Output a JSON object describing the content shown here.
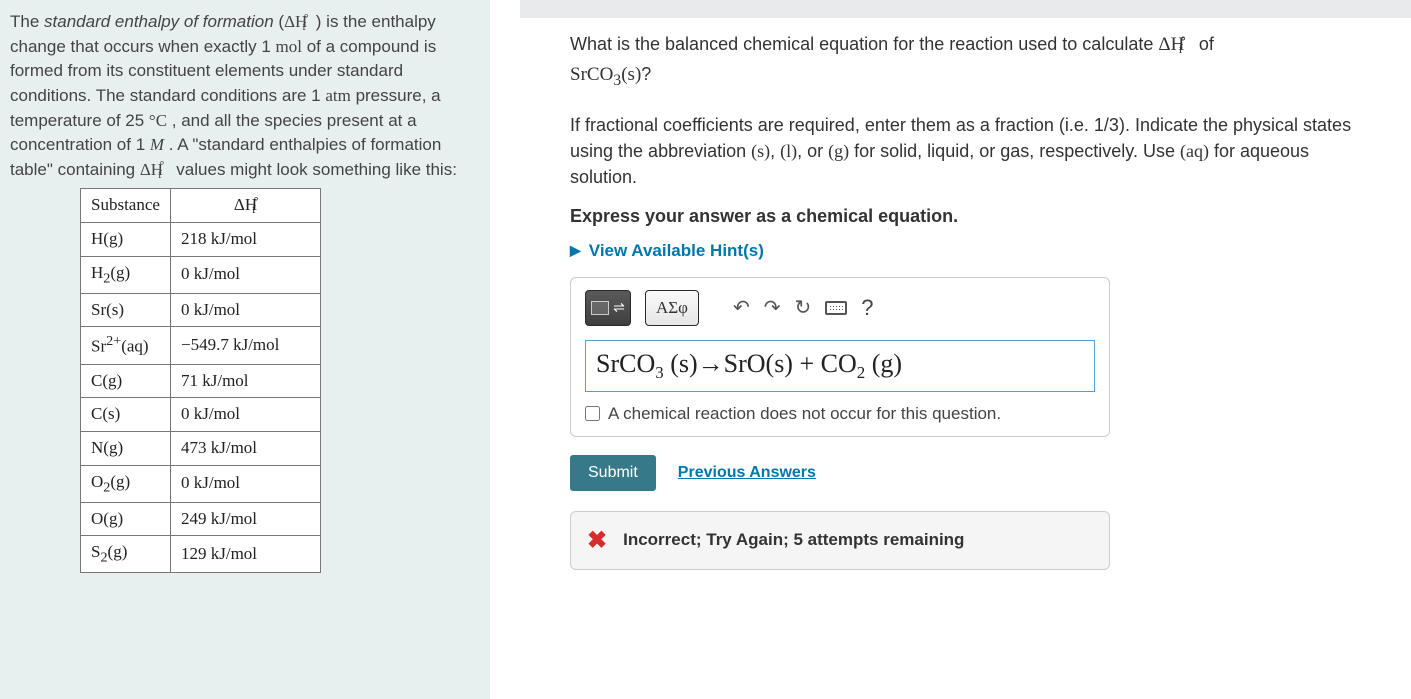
{
  "left": {
    "intro_html": "The <i>standard enthalpy of formation</i> (<span class='rm'>Δ<span class='ss'>H<sup>∘</sup><sub>f</sub></span>&nbsp;&nbsp;</span>) is the enthalpy change that occurs when exactly 1 <span class='rm'>mol</span> of a compound is formed from its constituent elements under standard conditions. The standard conditions are 1 <span class='rm'>atm</span> pressure, a temperature of 25 <span class='rm'>°C</span> , and all the species present at a concentration of 1 <span class='rm'><i>M</i></span> . A \"standard enthalpies of formation table\" containing <span class='rm'>Δ<span class='ss'>H<sup>∘</sup><sub>f</sub></span>&nbsp;&nbsp;</span> values might look something like this:",
    "table": {
      "header": [
        "Substance",
        "Δ<span class='ss'>H<sup>∘</sup><sub>f</sub></span>"
      ],
      "rows": [
        [
          "H(g)",
          "218 kJ/mol"
        ],
        [
          "H<sub>2</sub>(g)",
          "0 kJ/mol"
        ],
        [
          "Sr(s)",
          "0 kJ/mol"
        ],
        [
          "Sr<sup>2+</sup>(aq)",
          "−549.7 kJ/mol"
        ],
        [
          "C(g)",
          "71 kJ/mol"
        ],
        [
          "C(s)",
          "0 kJ/mol"
        ],
        [
          "N(g)",
          "473 kJ/mol"
        ],
        [
          "O<sub>2</sub>(g)",
          "0 kJ/mol"
        ],
        [
          "O(g)",
          "249 kJ/mol"
        ],
        [
          "S<sub>2</sub>(g)",
          "129 kJ/mol"
        ]
      ]
    }
  },
  "right": {
    "question_html": "What is the balanced chemical equation for the reaction used to calculate <span class='rm'>Δ<span class='ss'>H<sup>∘</sup><sub>f</sub></span>&nbsp;&nbsp;</span> of <br><span class='rm'>SrCO<sub>3</sub>(s)</span>?",
    "instructions_html": "If fractional coefficients are required, enter them as a fraction (i.e. 1/3). Indicate the physical states using the abbreviation <span class='rm'>(s)</span>, <span class='rm'>(l)</span>, or <span class='rm'>(g)</span> for solid, liquid, or gas, respectively. Use <span class='rm'>(aq)</span> for aqueous solution.",
    "bold_instructions": "Express your answer as a chemical equation.",
    "hints_label": "View Available Hint(s)",
    "toolbar": {
      "greek_label": "ΑΣφ",
      "undo": "↶",
      "redo": "↷",
      "reset": "↻",
      "help": "?"
    },
    "answer_value_html": "SrCO<sub>3</sub> (s)→SrO(s) + CO<sub>2</sub> (g)",
    "no_reaction_label": "A chemical reaction does not occur for this question.",
    "submit_label": "Submit",
    "previous_label": "Previous Answers",
    "feedback_text": "Incorrect; Try Again; 5 attempts remaining"
  },
  "colors": {
    "left_bg": "#e7f0ef",
    "link": "#0077aa",
    "submit_bg": "#367a8a",
    "error": "#d82c2c",
    "input_border": "#5b9bd5"
  }
}
